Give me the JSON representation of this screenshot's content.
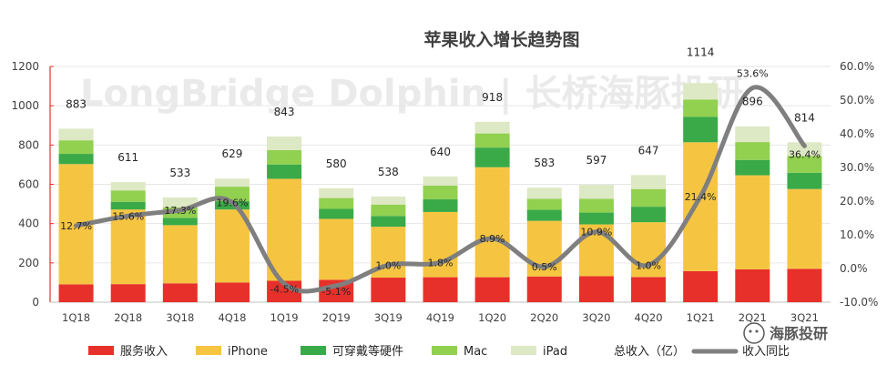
{
  "chart_data": {
    "type": "bar",
    "stacked": true,
    "title": "苹果收入增长趋势图",
    "categories": [
      "1Q18",
      "2Q18",
      "3Q18",
      "4Q18",
      "1Q19",
      "2Q19",
      "3Q19",
      "4Q19",
      "1Q20",
      "2Q20",
      "3Q20",
      "4Q20",
      "1Q21",
      "2Q21",
      "3Q21"
    ],
    "ylim": [
      0,
      1200
    ],
    "yticks": [
      0,
      200,
      400,
      600,
      800,
      1000,
      1200
    ],
    "y2lim": [
      -10,
      60
    ],
    "y2ticks": [
      -10,
      0,
      10,
      20,
      30,
      40,
      50,
      60
    ],
    "y2ticks_labels": [
      "-10.0%",
      "0.0%",
      "10.0%",
      "20.0%",
      "30.0%",
      "40.0%",
      "50.0%",
      "60.0%"
    ],
    "series": [
      {
        "name": "服务收入",
        "color": "#e8302a",
        "values": [
          91,
          92,
          96,
          100,
          109,
          114,
          125,
          127,
          127,
          131,
          132,
          128,
          158,
          167,
          170
        ]
      },
      {
        "name": "iPhone",
        "color": "#f5c542",
        "values": [
          612,
          380,
          296,
          372,
          519,
          310,
          259,
          332,
          560,
          283,
          264,
          279,
          656,
          479,
          406
        ]
      },
      {
        "name": "可穿戴等硬件",
        "color": "#3aaa48",
        "values": [
          52,
          39,
          37,
          42,
          73,
          51,
          55,
          65,
          100,
          56,
          60,
          79,
          130,
          78,
          83
        ]
      },
      {
        "name": "Mac",
        "color": "#92d050",
        "values": [
          69,
          58,
          53,
          74,
          73,
          55,
          58,
          70,
          72,
          56,
          70,
          90,
          87,
          91,
          86
        ]
      },
      {
        "name": "iPad",
        "color": "#dde8c4",
        "values": [
          59,
          42,
          51,
          41,
          69,
          50,
          41,
          46,
          59,
          57,
          71,
          71,
          84,
          80,
          69
        ]
      }
    ],
    "totals": [
      883,
      611,
      533,
      629,
      843,
      580,
      538,
      640,
      918,
      583,
      597,
      647,
      1114,
      896,
      814
    ],
    "totals_labels": [
      "883",
      "611",
      "533",
      "629",
      "843",
      "580",
      "538",
      "640",
      "918",
      "583",
      "597",
      "647",
      "1114",
      "896",
      "814"
    ],
    "totals_series_name": "总收入（亿）",
    "yoy": [
      12.7,
      15.6,
      17.3,
      19.6,
      -4.5,
      -5.1,
      1.0,
      1.8,
      8.9,
      0.5,
      10.9,
      1.0,
      21.4,
      53.6,
      36.4
    ],
    "yoy_labels": [
      "12.7%",
      "15.6%",
      "17.3%",
      "19.6%",
      "-4.5%",
      "-5.1%",
      "1.0%",
      "1.8%",
      "8.9%",
      "0.5%",
      "10.9%",
      "1.0%",
      "21.4%",
      "53.6%",
      "36.4%"
    ],
    "yoy_series_name": "收入同比",
    "yoy_color": "#7f7f7f"
  },
  "watermark": "LongBridge Dolphin | 长桥海豚投研",
  "brand": "海豚投研"
}
